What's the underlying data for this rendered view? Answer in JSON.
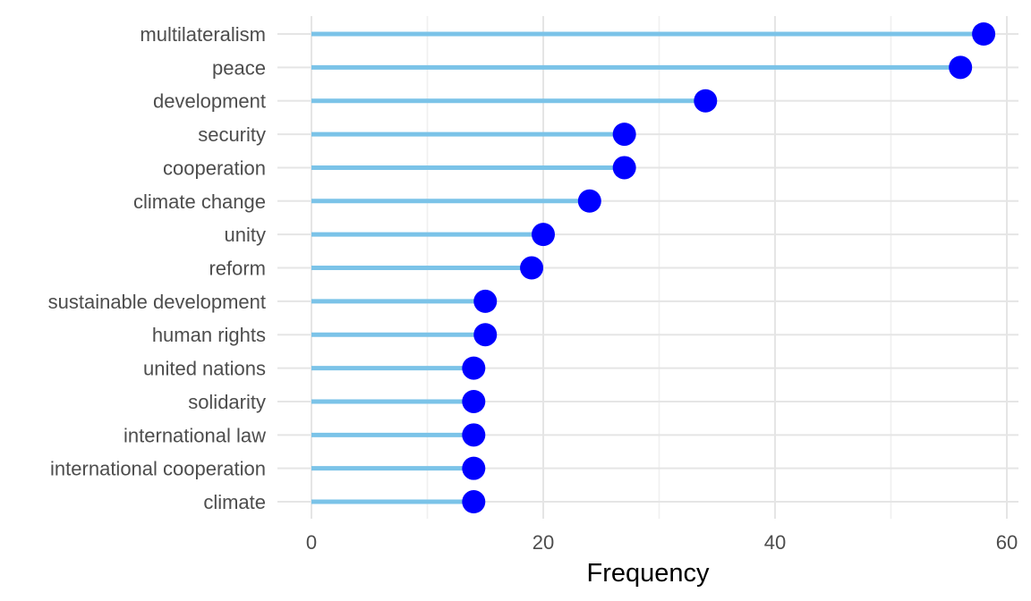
{
  "chart_data": {
    "type": "lollipop",
    "categories": [
      "multilateralism",
      "peace",
      "development",
      "security",
      "cooperation",
      "climate change",
      "unity",
      "reform",
      "sustainable development",
      "human rights",
      "united nations",
      "solidarity",
      "international law",
      "international cooperation",
      "climate"
    ],
    "values": [
      58,
      56,
      34,
      27,
      27,
      24,
      20,
      19,
      15,
      15,
      14,
      14,
      14,
      14,
      14
    ],
    "xlabel": "Frequency",
    "ylabel": "",
    "xlim": [
      0,
      60
    ],
    "x_ticks": [
      "0",
      "20",
      "40",
      "60"
    ],
    "grid": true,
    "colors": {
      "stem": "#7bc3e8",
      "point": "#0000ff",
      "grid_major": "#e5e5e5",
      "grid_minor": "#f0f0f0",
      "tick_text": "#4d4d4d"
    }
  }
}
